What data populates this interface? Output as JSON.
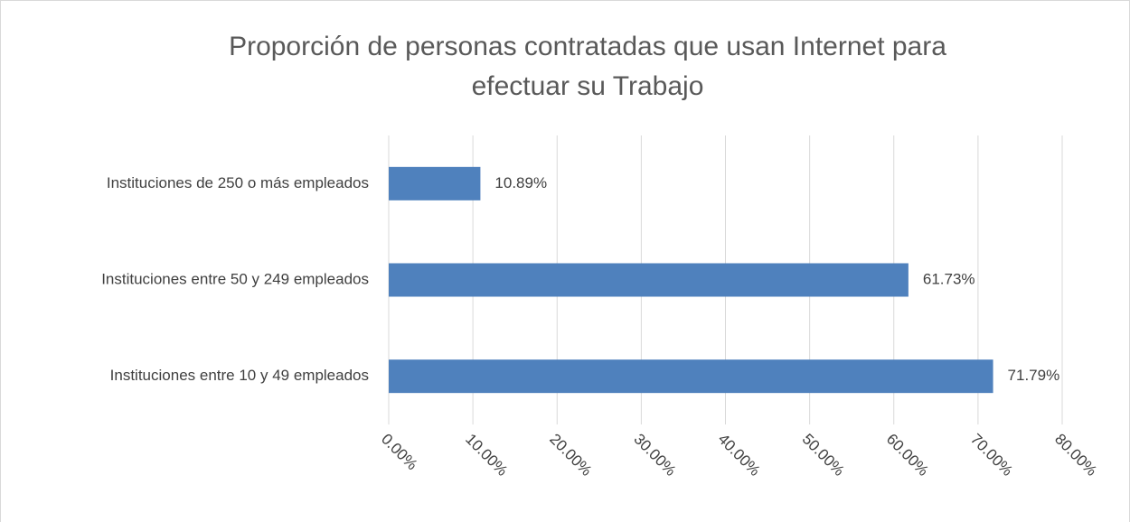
{
  "chart_data": {
    "type": "bar",
    "orientation": "horizontal",
    "title": "Proporción de personas contratadas que usan Internet para efectuar su Trabajo",
    "categories": [
      "Instituciones de 250 o más empleados",
      "Instituciones entre 50 y 249 empleados",
      "Instituciones entre 10 y 49 empleados"
    ],
    "values": [
      10.89,
      61.73,
      71.79
    ],
    "value_labels": [
      "10.89%",
      "61.73%",
      "71.79%"
    ],
    "color": "#4f81bd",
    "xlim": [
      0,
      80
    ],
    "xticks": [
      {
        "value": 0,
        "label": "0.00%"
      },
      {
        "value": 10,
        "label": "10.00%"
      },
      {
        "value": 20,
        "label": "20.00%"
      },
      {
        "value": 30,
        "label": "30.00%"
      },
      {
        "value": 40,
        "label": "40.00%"
      },
      {
        "value": 50,
        "label": "50.00%"
      },
      {
        "value": 60,
        "label": "60.00%"
      },
      {
        "value": 70,
        "label": "70.00%"
      },
      {
        "value": 80,
        "label": "80.00%"
      }
    ],
    "grid": true
  }
}
